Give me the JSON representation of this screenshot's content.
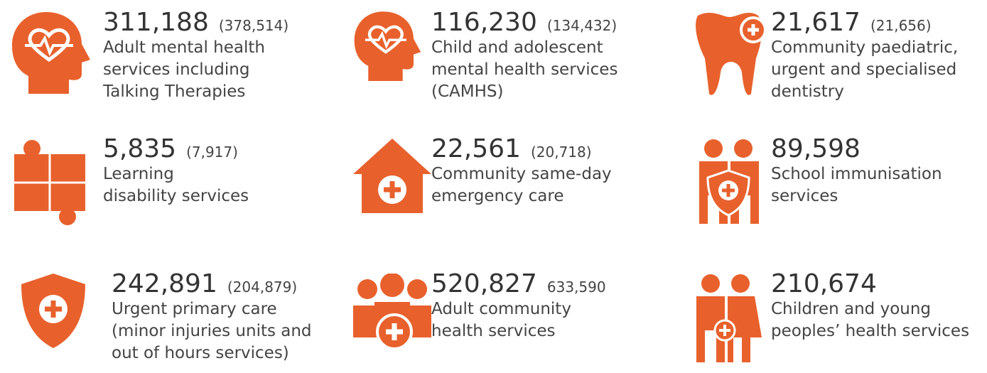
{
  "items": [
    {
      "number": "311,188",
      "previous": "(378,514)",
      "description": [
        "Adult mental health",
        "services including",
        "Talking Therapies"
      ]
    },
    {
      "number": "116,230",
      "previous": "(134,432)",
      "description": [
        "Child and adolescent",
        "mental health services",
        "(CAMHS)"
      ]
    },
    {
      "number": "21,617",
      "previous": "(21,656)",
      "description": [
        "Community paediatric,",
        "urgent and specialised",
        "dentistry"
      ]
    },
    {
      "number": "5,835",
      "previous": "(7,917)",
      "description": [
        "Learning",
        "disability services"
      ]
    },
    {
      "number": "22,561",
      "previous": "(20,718)",
      "description": [
        "Community same-day",
        "emergency care"
      ]
    },
    {
      "number": "89,598",
      "description": [
        "School immunisation",
        "services"
      ]
    },
    {
      "number": "242,891",
      "previous": "(204,879)",
      "description": [
        "Urgent primary care",
        "(minor injuries units and",
        "out of hours services)"
      ]
    },
    {
      "number": "520,827",
      "previous": "633,590",
      "description": [
        "Adult community",
        "health services"
      ]
    },
    {
      "number": "210,674",
      "description": [
        "Children and young",
        "peoples’ health services"
      ]
    }
  ]
}
